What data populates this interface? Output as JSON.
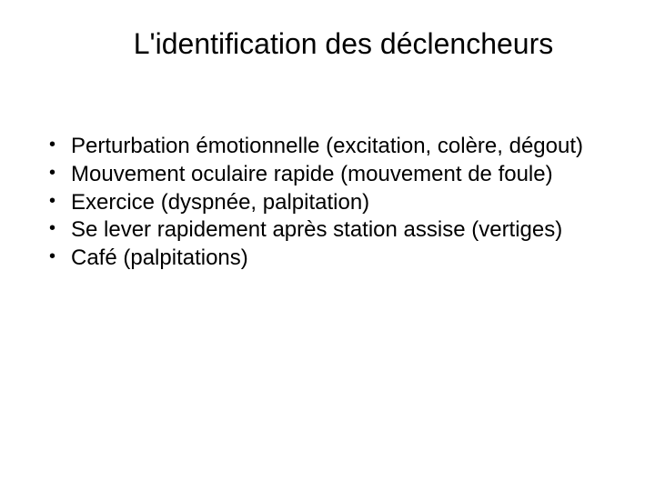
{
  "slide": {
    "title": "L'identification des déclencheurs",
    "title_fontsize": 32,
    "title_weight": 400,
    "body_fontsize": 24,
    "text_color": "#000000",
    "background_color": "#ffffff",
    "bullets": [
      {
        "text": "Perturbation émotionnelle (excitation, colère, dégout)"
      },
      {
        "text": "Mouvement oculaire rapide (mouvement de foule)"
      },
      {
        "text": "Exercice (dyspnée, palpitation)"
      },
      {
        "text": "Se lever rapidement après station assise (vertiges)"
      },
      {
        "text": "Café (palpitations)"
      }
    ]
  }
}
